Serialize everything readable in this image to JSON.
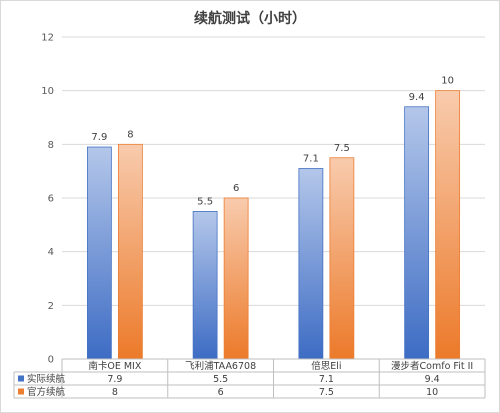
{
  "chart_data": {
    "type": "bar",
    "title": "续航测试（小时）",
    "categories": [
      "南卡OE MIX",
      "飞利浦TAA6708",
      "倍思Eli",
      "漫步者Comfo Fit II"
    ],
    "series": [
      {
        "name": "实际续航",
        "values": [
          7.9,
          5.5,
          7.1,
          9.4
        ],
        "color": "#4472c4"
      },
      {
        "name": "官方续航",
        "values": [
          8,
          6,
          7.5,
          10
        ],
        "color": "#ed7d31"
      }
    ],
    "table_values": [
      [
        "7.9",
        "5.5",
        "7.1",
        "9.4"
      ],
      [
        "8",
        "6",
        "7.5",
        "10"
      ]
    ],
    "ylim": [
      0,
      12
    ],
    "yticks": [
      "0",
      "2",
      "4",
      "6",
      "8",
      "10",
      "12"
    ],
    "grid": true,
    "legend": "data-table"
  }
}
